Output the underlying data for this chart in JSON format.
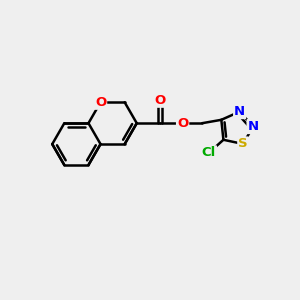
{
  "background_color": "#efefef",
  "bond_color": "#000000",
  "bond_width": 1.8,
  "atom_colors": {
    "O": "#ff0000",
    "N": "#0000ff",
    "S": "#ccaa00",
    "Cl": "#00aa00",
    "C": "#000000"
  },
  "font_size": 9.5,
  "figsize": [
    3.0,
    3.0
  ],
  "dpi": 100
}
